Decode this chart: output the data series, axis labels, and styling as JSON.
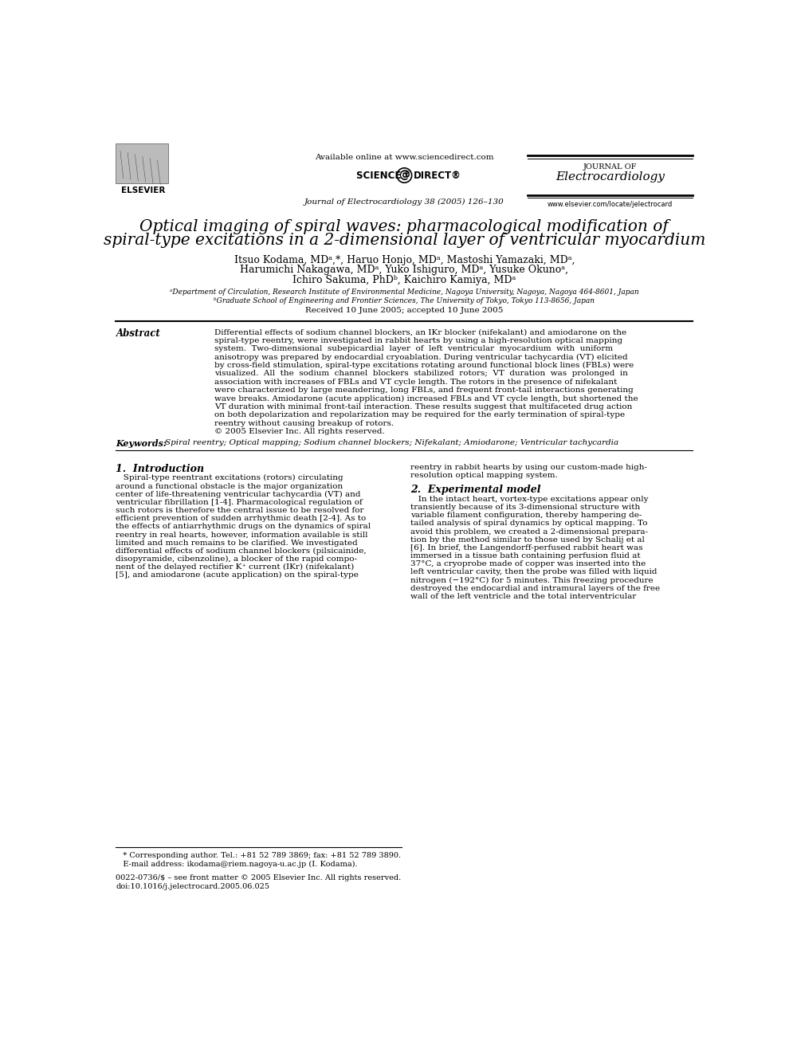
{
  "bg_color": "#ffffff",
  "available_online": "Available online at www.sciencedirect.com",
  "journal_name_top": "JOURNAL OF",
  "journal_name_bottom": "Electrocardiology",
  "journal_citation": "Journal of Electrocardiology 38 (2005) 126–130",
  "journal_url": "www.elsevier.com/locate/jelectrocard",
  "title_line1": "Optical imaging of spiral waves: pharmacological modification of",
  "title_line2": "spiral-type excitations in a 2-dimensional layer of ventricular myocardium",
  "author_line1": "Itsuo Kodama, MDᵃ,*, Haruo Honjo, MDᵃ, Mastoshi Yamazaki, MDᵃ,",
  "author_line2": "Harumichi Nakagawa, MDᵃ, Yuko Ishiguro, MDᵃ, Yusuke Okunoᵃ,",
  "author_line3": "Ichiro Sakuma, PhDᵇ, Kaichiro Kamiya, MDᵃ",
  "affil_a": "ᵃDepartment of Circulation, Research Institute of Environmental Medicine, Nagoya University, Nagoya, Nagoya 464-8601, Japan",
  "affil_b": "ᵇGraduate School of Engineering and Frontier Sciences, The University of Tokyo, Tokyo 113-8656, Japan",
  "received": "Received 10 June 2005; accepted 10 June 2005",
  "abstract_label": "Abstract",
  "abstract_lines": [
    "Differential effects of sodium channel blockers, an IKr blocker (nifekalant) and amiodarone on the",
    "spiral-type reentry, were investigated in rabbit hearts by using a high-resolution optical mapping",
    "system.  Two-dimensional  subepicardial  layer  of  left  ventricular  myocardium  with  uniform",
    "anisotropy was prepared by endocardial cryoablation. During ventricular tachycardia (VT) elicited",
    "by cross-field stimulation, spiral-type excitations rotating around functional block lines (FBLs) were",
    "visualized.  All  the  sodium  channel  blockers  stabilized  rotors;  VT  duration  was  prolonged  in",
    "association with increases of FBLs and VT cycle length. The rotors in the presence of nifekalant",
    "were characterized by large meandering, long FBLs, and frequent front-tail interactions generating",
    "wave breaks. Amiodarone (acute application) increased FBLs and VT cycle length, but shortened the",
    "VT duration with minimal front-tail interaction. These results suggest that multifaceted drug action",
    "on both depolarization and repolarization may be required for the early termination of spiral-type",
    "reentry without causing breakup of rotors.",
    "© 2005 Elsevier Inc. All rights reserved."
  ],
  "keywords_label": "Keywords:",
  "keywords_text": "Spiral reentry; Optical mapping; Sodium channel blockers; Nifekalant; Amiodarone; Ventricular tachycardia",
  "sec1_title": "1.  Introduction",
  "sec1_col1_lines": [
    "   Spiral-type reentrant excitations (rotors) circulating",
    "around a functional obstacle is the major organization",
    "center of life-threatening ventricular tachycardia (VT) and",
    "ventricular fibrillation [1-4]. Pharmacological regulation of",
    "such rotors is therefore the central issue to be resolved for",
    "efficient prevention of sudden arrhythmic death [2-4]. As to",
    "the effects of antiarrhythmic drugs on the dynamics of spiral",
    "reentry in real hearts, however, information available is still",
    "limited and much remains to be clarified. We investigated",
    "differential effects of sodium channel blockers (pilsicainide,",
    "disopyramide, cibenzoline), a blocker of the rapid compo-",
    "nent of the delayed rectifier K⁺ current (IKr) (nifekalant)",
    "[5], and amiodarone (acute application) on the spiral-type"
  ],
  "sec1_col2_lines": [
    "reentry in rabbit hearts by using our custom-made high-",
    "resolution optical mapping system."
  ],
  "sec2_title": "2.  Experimental model",
  "sec2_col2_lines": [
    "   In the intact heart, vortex-type excitations appear only",
    "transiently because of its 3-dimensional structure with",
    "variable filament configuration, thereby hampering de-",
    "tailed analysis of spiral dynamics by optical mapping. To",
    "avoid this problem, we created a 2-dimensional prepara-",
    "tion by the method similar to those used by Schalij et al",
    "[6]. In brief, the Langendorff-perfused rabbit heart was",
    "immersed in a tissue bath containing perfusion fluid at",
    "37°C, a cryoprobe made of copper was inserted into the",
    "left ventricular cavity, then the probe was filled with liquid",
    "nitrogen (−192°C) for 5 minutes. This freezing procedure",
    "destroyed the endocardial and intramural layers of the free",
    "wall of the left ventricle and the total interventricular"
  ],
  "footnote_star": "   * Corresponding author. Tel.: +81 52 789 3869; fax: +81 52 789 3890.",
  "footnote_email": "   E-mail address: ikodama@riem.nagoya-u.ac.jp (I. Kodama).",
  "footnote_issn": "0022-0736/$ – see front matter © 2005 Elsevier Inc. All rights reserved.",
  "footnote_doi": "doi:10.1016/j.jelectrocard.2005.06.025"
}
